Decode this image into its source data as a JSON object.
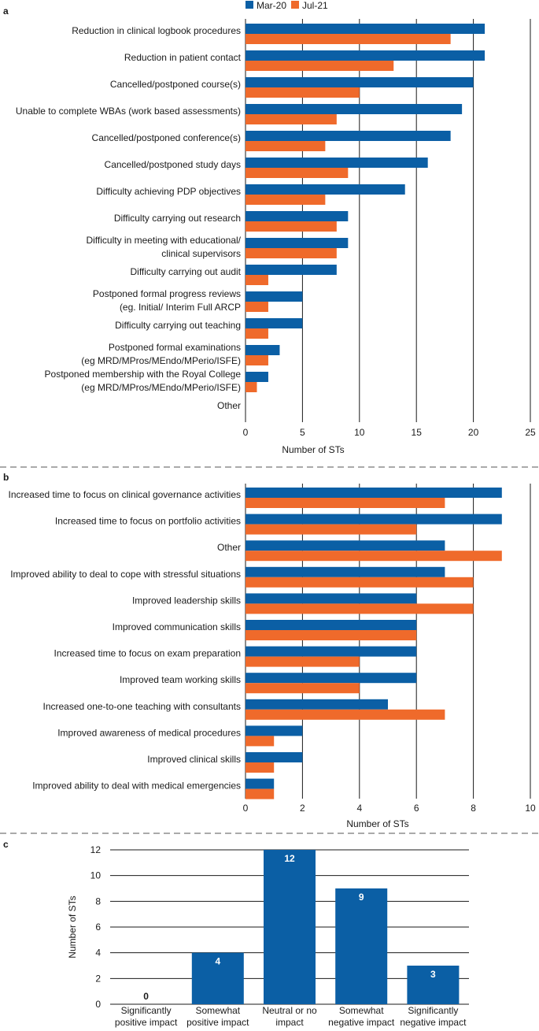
{
  "colors": {
    "mar20": "#0b5fa5",
    "jul21": "#ef6a2b",
    "grid": "#1a1a1a",
    "divider": "#555555"
  },
  "legend": [
    {
      "name": "Mar-20"
    },
    {
      "name": "Jul-21"
    }
  ],
  "chart_data": [
    {
      "panel": "a",
      "type": "bar",
      "orientation": "horizontal",
      "xlabel": "Number of STs",
      "xlim": [
        0,
        25
      ],
      "xticks": [
        0,
        5,
        10,
        15,
        20,
        25
      ],
      "categories": [
        [
          "Reduction in clinical logbook procedures"
        ],
        [
          "Reduction in patient contact"
        ],
        [
          "Cancelled/postponed course(s)"
        ],
        [
          "Unable to complete WBAs (work based assessments)"
        ],
        [
          "Cancelled/postponed conference(s)"
        ],
        [
          "Cancelled/postponed study days"
        ],
        [
          "Difficulty achieving PDP objectives"
        ],
        [
          "Difficulty carrying out research"
        ],
        [
          "Difficulty in meeting with educational/",
          "clinical supervisors"
        ],
        [
          "Difficulty carrying out audit"
        ],
        [
          "Postponed formal progress reviews",
          "(eg. Initial/ Interim Full ARCP"
        ],
        [
          "Difficulty carrying out teaching"
        ],
        [
          "Postponed formal examinations",
          "(eg MRD/MPros/MEndo/MPerio/ISFE)"
        ],
        [
          "Postponed membership with the Royal College",
          "(eg MRD/MPros/MEndo/MPerio/ISFE)"
        ],
        [
          "Other"
        ]
      ],
      "series": [
        {
          "name": "Mar-20",
          "values": [
            21,
            21,
            20,
            19,
            18,
            16,
            14,
            9,
            9,
            8,
            5,
            5,
            3,
            2,
            0
          ]
        },
        {
          "name": "Jul-21",
          "values": [
            18,
            13,
            10,
            8,
            7,
            9,
            7,
            8,
            8,
            2,
            2,
            2,
            2,
            1,
            0
          ]
        }
      ]
    },
    {
      "panel": "b",
      "type": "bar",
      "orientation": "horizontal",
      "xlabel": "Number of STs",
      "xlim": [
        0,
        10
      ],
      "xticks": [
        0,
        2,
        4,
        6,
        8,
        10
      ],
      "categories": [
        [
          "Increased time to focus on clinical governance activities"
        ],
        [
          "Increased time to focus on portfolio activities"
        ],
        [
          "Other"
        ],
        [
          "Improved ability to deal to cope with stressful situations"
        ],
        [
          "Improved leadership skills"
        ],
        [
          "Improved communication skills"
        ],
        [
          "Increased time to focus on exam preparation"
        ],
        [
          "Improved team working skills"
        ],
        [
          "Increased one-to-one teaching with consultants"
        ],
        [
          "Improved awareness of medical procedures"
        ],
        [
          "Improved clinical skills"
        ],
        [
          "Improved ability to deal with medical emergencies"
        ]
      ],
      "series": [
        {
          "name": "Mar-20",
          "values": [
            9,
            9,
            7,
            7,
            6,
            6,
            6,
            6,
            5,
            2,
            2,
            1
          ]
        },
        {
          "name": "Jul-21",
          "values": [
            7,
            6,
            9,
            8,
            8,
            6,
            4,
            4,
            7,
            1,
            1,
            1
          ]
        }
      ]
    },
    {
      "panel": "c",
      "type": "bar",
      "orientation": "vertical",
      "ylabel": "Number of STs",
      "ylim": [
        0,
        12
      ],
      "yticks": [
        0,
        2,
        4,
        6,
        8,
        10,
        12
      ],
      "categories": [
        [
          "Significantly",
          "positive impact"
        ],
        [
          "Somewhat",
          "positive impact"
        ],
        [
          "Neutral or no",
          "impact"
        ],
        [
          "Somewhat",
          "negative impact"
        ],
        [
          "Significantly",
          "negative impact"
        ]
      ],
      "values": [
        0,
        4,
        12,
        9,
        3
      ],
      "data_labels": [
        "0",
        "4",
        "12",
        "9",
        "3"
      ]
    }
  ]
}
